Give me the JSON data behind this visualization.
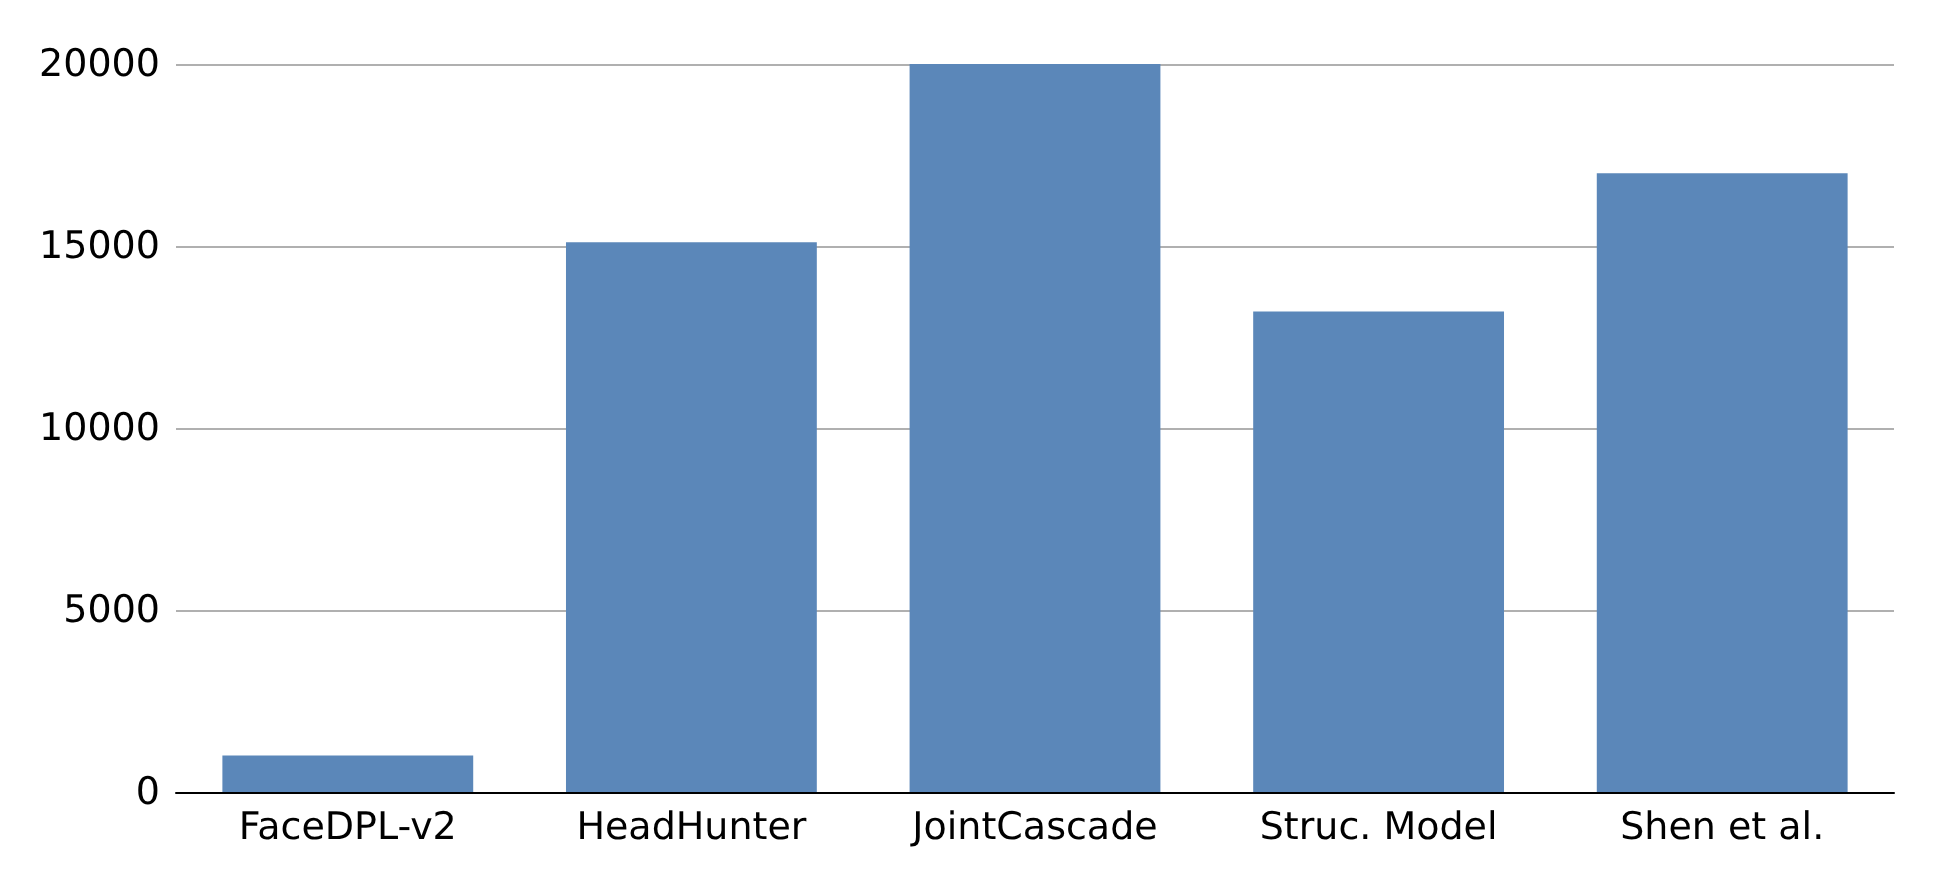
{
  "chart_data": {
    "type": "bar",
    "categories": [
      "FaceDPL-v2",
      "HeadHunter",
      "JointCascade",
      "Struc. Model",
      "Shen et al."
    ],
    "values": [
      1000,
      15100,
      20000,
      13200,
      17000
    ],
    "color": "#5b87b9",
    "ylim": [
      0,
      20000
    ],
    "yticks": [
      0,
      5000,
      10000,
      15000,
      20000
    ],
    "grid": "y"
  }
}
